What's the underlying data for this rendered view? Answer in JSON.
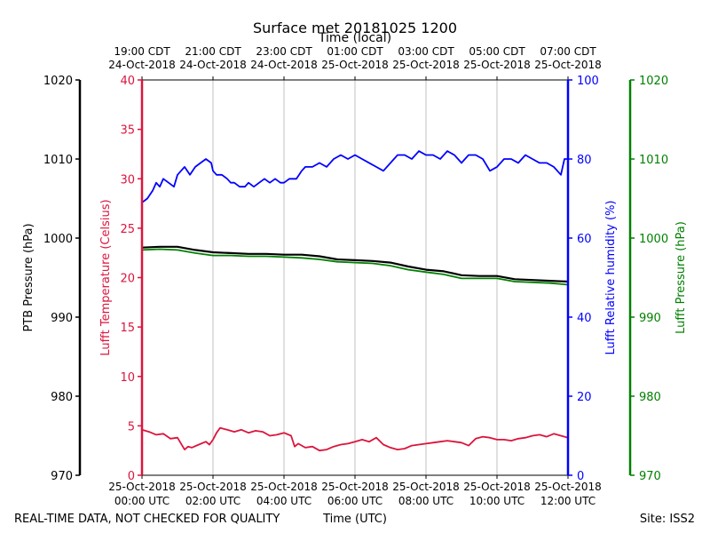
{
  "chart_data": {
    "type": "line",
    "title": "Surface met 20181025 1200",
    "top_axis_label": "Time (local)",
    "x_label": "Time (UTC)",
    "footer_left": "REAL-TIME DATA, NOT CHECKED FOR QUALITY",
    "footer_right": "Site: ISS2",
    "x_range_hours": [
      0,
      12
    ],
    "bottom_ticks": [
      {
        "hour": 0,
        "line1": "25-Oct-2018",
        "line2": "00:00 UTC"
      },
      {
        "hour": 2,
        "line1": "25-Oct-2018",
        "line2": "02:00 UTC"
      },
      {
        "hour": 4,
        "line1": "25-Oct-2018",
        "line2": "04:00 UTC"
      },
      {
        "hour": 6,
        "line1": "25-Oct-2018",
        "line2": "06:00 UTC"
      },
      {
        "hour": 8,
        "line1": "25-Oct-2018",
        "line2": "08:00 UTC"
      },
      {
        "hour": 10,
        "line1": "25-Oct-2018",
        "line2": "10:00 UTC"
      },
      {
        "hour": 12,
        "line1": "25-Oct-2018",
        "line2": "12:00 UTC"
      }
    ],
    "top_ticks": [
      {
        "hour": 0,
        "line1": "19:00 CDT",
        "line2": "24-Oct-2018"
      },
      {
        "hour": 2,
        "line1": "21:00 CDT",
        "line2": "24-Oct-2018"
      },
      {
        "hour": 4,
        "line1": "23:00 CDT",
        "line2": "24-Oct-2018"
      },
      {
        "hour": 6,
        "line1": "01:00 CDT",
        "line2": "25-Oct-2018"
      },
      {
        "hour": 8,
        "line1": "03:00 CDT",
        "line2": "25-Oct-2018"
      },
      {
        "hour": 10,
        "line1": "05:00 CDT",
        "line2": "25-Oct-2018"
      },
      {
        "hour": 12,
        "line1": "07:00 CDT",
        "line2": "25-Oct-2018"
      }
    ],
    "axes": {
      "ptb_pressure": {
        "label": "PTB Pressure (hPa)",
        "range": [
          970,
          1020
        ],
        "ticks": [
          970,
          980,
          990,
          1000,
          1010,
          1020
        ],
        "color": "#000000"
      },
      "lufft_temp": {
        "label": "Lufft Temperature (Celsius)",
        "range": [
          0,
          40
        ],
        "ticks": [
          0,
          5,
          10,
          15,
          20,
          25,
          30,
          35,
          40
        ],
        "color": "#dc143c"
      },
      "lufft_rh": {
        "label": "Lufft Relative humidity (%)",
        "range": [
          0,
          100
        ],
        "ticks": [
          0,
          20,
          40,
          60,
          80,
          100
        ],
        "color": "#0000ff"
      },
      "lufft_pressure": {
        "label": "Lufft Pressure (hPa)",
        "range": [
          970,
          1020
        ],
        "ticks": [
          970,
          980,
          990,
          1000,
          1010,
          1020
        ],
        "color": "#008000"
      }
    },
    "series": [
      {
        "name": "Lufft Relative humidity",
        "axis": "lufft_rh",
        "color": "#0000ff",
        "x": [
          0,
          0.15,
          0.3,
          0.4,
          0.5,
          0.6,
          0.75,
          0.9,
          1.0,
          1.1,
          1.2,
          1.35,
          1.5,
          1.65,
          1.8,
          1.95,
          2.0,
          2.1,
          2.25,
          2.4,
          2.5,
          2.6,
          2.75,
          2.9,
          3.0,
          3.15,
          3.3,
          3.45,
          3.6,
          3.75,
          3.9,
          4.0,
          4.15,
          4.25,
          4.35,
          4.5,
          4.6,
          4.8,
          5.0,
          5.2,
          5.4,
          5.6,
          5.8,
          6.0,
          6.2,
          6.4,
          6.6,
          6.8,
          7.0,
          7.2,
          7.4,
          7.6,
          7.8,
          8.0,
          8.2,
          8.4,
          8.6,
          8.8,
          9.0,
          9.2,
          9.4,
          9.6,
          9.8,
          10.0,
          10.2,
          10.4,
          10.6,
          10.8,
          11.0,
          11.2,
          11.4,
          11.6,
          11.8,
          11.9,
          12.0
        ],
        "values": [
          69,
          70,
          72,
          74,
          73,
          75,
          74,
          73,
          76,
          77,
          78,
          76,
          78,
          79,
          80,
          79,
          77,
          76,
          76,
          75,
          74,
          74,
          73,
          73,
          74,
          73,
          74,
          75,
          74,
          75,
          74,
          74,
          75,
          75,
          75,
          77,
          78,
          78,
          79,
          78,
          80,
          81,
          80,
          81,
          80,
          79,
          78,
          77,
          79,
          81,
          81,
          80,
          82,
          81,
          81,
          80,
          82,
          81,
          79,
          81,
          81,
          80,
          77,
          78,
          80,
          80,
          79,
          81,
          80,
          79,
          79,
          78,
          76,
          80,
          80
        ]
      },
      {
        "name": "PTB Pressure",
        "axis": "ptb_pressure",
        "color": "#000000",
        "x": [
          0,
          0.5,
          1.0,
          1.5,
          2.0,
          2.5,
          3.0,
          3.5,
          4.0,
          4.5,
          5.0,
          5.5,
          6.0,
          6.5,
          7.0,
          7.5,
          8.0,
          8.5,
          9.0,
          9.5,
          10.0,
          10.5,
          11.0,
          11.5,
          12.0
        ],
        "values": [
          998.8,
          998.9,
          998.9,
          998.5,
          998.2,
          998.1,
          998.0,
          998.0,
          997.9,
          997.9,
          997.7,
          997.3,
          997.2,
          997.1,
          996.9,
          996.4,
          996.0,
          995.8,
          995.3,
          995.2,
          995.2,
          994.8,
          994.7,
          994.6,
          994.5
        ]
      },
      {
        "name": "Lufft Pressure",
        "axis": "lufft_pressure",
        "color": "#008000",
        "x": [
          0,
          0.5,
          1.0,
          1.5,
          2.0,
          2.5,
          3.0,
          3.5,
          4.0,
          4.5,
          5.0,
          5.5,
          6.0,
          6.5,
          7.0,
          7.5,
          8.0,
          8.5,
          9.0,
          9.5,
          10.0,
          10.5,
          11.0,
          11.5,
          12.0
        ],
        "values": [
          998.5,
          998.6,
          998.5,
          998.1,
          997.8,
          997.8,
          997.7,
          997.7,
          997.6,
          997.5,
          997.3,
          997.0,
          996.9,
          996.8,
          996.5,
          996.0,
          995.7,
          995.4,
          994.9,
          994.9,
          994.9,
          994.5,
          994.4,
          994.3,
          994.1
        ]
      },
      {
        "name": "Lufft Temperature",
        "axis": "lufft_temp",
        "color": "#dc143c",
        "x": [
          0,
          0.2,
          0.4,
          0.6,
          0.8,
          1.0,
          1.1,
          1.2,
          1.3,
          1.4,
          1.6,
          1.8,
          1.9,
          2.0,
          2.1,
          2.2,
          2.4,
          2.6,
          2.8,
          3.0,
          3.2,
          3.4,
          3.6,
          3.8,
          4.0,
          4.2,
          4.3,
          4.4,
          4.6,
          4.8,
          5.0,
          5.2,
          5.4,
          5.6,
          5.8,
          6.0,
          6.2,
          6.4,
          6.6,
          6.8,
          7.0,
          7.2,
          7.4,
          7.6,
          7.8,
          8.0,
          8.2,
          8.4,
          8.6,
          8.8,
          9.0,
          9.2,
          9.4,
          9.6,
          9.8,
          10.0,
          10.2,
          10.4,
          10.6,
          10.8,
          11.0,
          11.2,
          11.4,
          11.6,
          11.8,
          12.0
        ],
        "values": [
          4.6,
          4.4,
          4.1,
          4.2,
          3.7,
          3.8,
          3.2,
          2.6,
          2.9,
          2.8,
          3.1,
          3.4,
          3.1,
          3.6,
          4.3,
          4.8,
          4.6,
          4.4,
          4.6,
          4.3,
          4.5,
          4.4,
          4.0,
          4.1,
          4.3,
          4.0,
          2.9,
          3.2,
          2.8,
          2.9,
          2.5,
          2.6,
          2.9,
          3.1,
          3.2,
          3.4,
          3.6,
          3.4,
          3.8,
          3.1,
          2.8,
          2.6,
          2.7,
          3.0,
          3.1,
          3.2,
          3.3,
          3.4,
          3.5,
          3.4,
          3.3,
          3.0,
          3.7,
          3.9,
          3.8,
          3.6,
          3.6,
          3.5,
          3.7,
          3.8,
          4.0,
          4.1,
          3.9,
          4.2,
          4.0,
          3.8
        ]
      }
    ]
  }
}
